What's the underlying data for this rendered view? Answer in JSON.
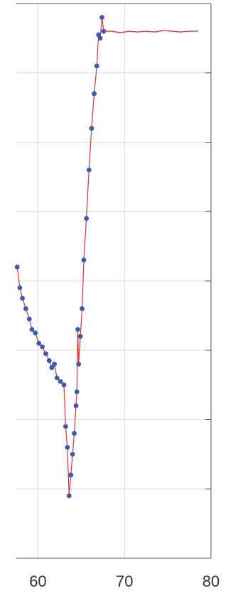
{
  "chart_data": {
    "type": "scatter",
    "title": "",
    "xlabel": "",
    "ylabel": "",
    "xlim": [
      57.5,
      80
    ],
    "ylim": [
      0,
      8
    ],
    "x_ticks": [
      60,
      70,
      80
    ],
    "x_tick_labels": [
      "60",
      "70",
      "80"
    ],
    "y_grid_levels": [
      1,
      2,
      3,
      4,
      5,
      6,
      7
    ],
    "grid": true,
    "colors": {
      "line": "#d9363e",
      "marker": "#3f5aa8",
      "grid": "#dcdcdc",
      "axis": "#555555"
    },
    "series": [
      {
        "x": [
          57.6,
          57.9,
          58.2,
          58.6,
          59.0,
          59.3,
          59.7,
          60.1,
          60.5,
          60.9,
          61.3,
          61.6,
          61.9,
          62.2,
          62.6,
          63.0,
          63.2,
          63.4,
          63.6,
          63.8,
          64.0,
          64.2,
          64.4,
          64.5,
          64.6,
          64.7,
          64.9,
          65.1,
          65.3,
          65.6,
          65.9,
          66.2,
          66.5,
          66.8,
          67.0,
          67.2,
          67.4,
          67.6
        ],
        "y": [
          4.2,
          3.9,
          3.75,
          3.6,
          3.45,
          3.3,
          3.25,
          3.1,
          3.05,
          2.95,
          2.85,
          2.75,
          2.8,
          2.6,
          2.55,
          2.5,
          1.9,
          1.6,
          0.9,
          1.2,
          1.5,
          1.8,
          2.2,
          2.4,
          3.3,
          2.8,
          3.2,
          3.6,
          4.3,
          4.9,
          5.6,
          6.2,
          6.7,
          7.1,
          7.55,
          7.5,
          7.8,
          7.6
        ]
      },
      {
        "x": [
          67.7,
          68.5,
          69.5,
          70.5,
          71.5,
          72.5,
          73.5,
          74.5,
          75.5,
          76.5,
          77.5,
          78.5
        ],
        "y": [
          7.6,
          7.6,
          7.58,
          7.6,
          7.59,
          7.6,
          7.59,
          7.61,
          7.6,
          7.59,
          7.6,
          7.6
        ]
      }
    ]
  }
}
